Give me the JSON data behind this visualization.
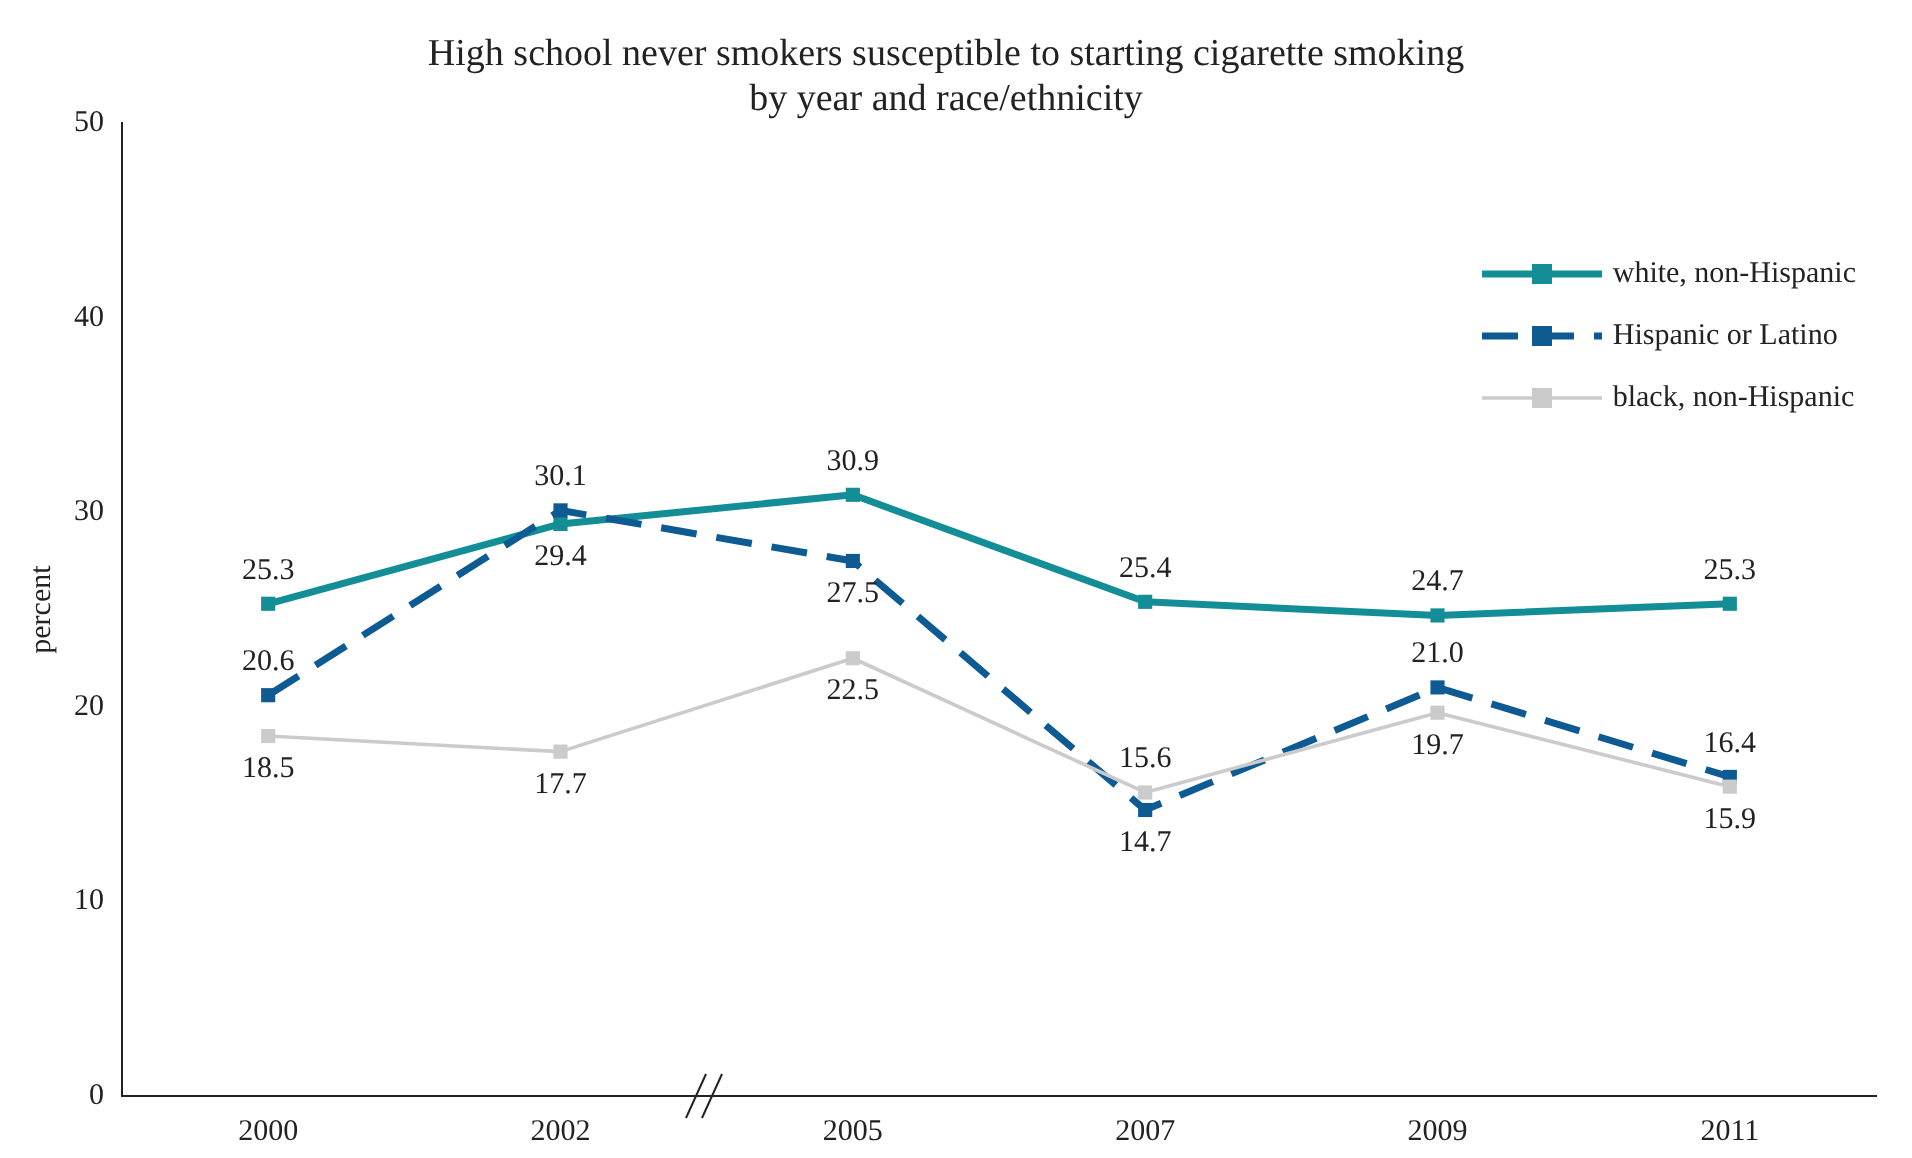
{
  "chart_data": {
    "type": "line",
    "title": "High school never smokers susceptible to starting cigarette smoking\nby year and race/ethnicity",
    "ylabel": "percent",
    "categories": [
      "2000",
      "2002",
      "2005",
      "2007",
      "2009",
      "2011"
    ],
    "ylim": [
      0,
      50
    ],
    "yticks": [
      0,
      10,
      20,
      30,
      40,
      50
    ],
    "grid": false,
    "legend": "top right",
    "marker": "square",
    "series": [
      {
        "name": "white, non-Hispanic",
        "color": "#138e96",
        "line_style": "solid",
        "values": [
          25.3,
          29.4,
          30.9,
          25.4,
          24.7,
          25.3
        ],
        "value_labels": [
          "25.3",
          "29.4",
          "30.9",
          "25.4",
          "24.7",
          "25.3"
        ]
      },
      {
        "name": "Hispanic or Latino",
        "color": "#0e5a92",
        "line_style": "dashed",
        "values": [
          20.6,
          30.1,
          27.5,
          14.7,
          21.0,
          16.4
        ],
        "value_labels": [
          "20.6",
          "30.1",
          "27.5",
          "14.7",
          "21.0",
          "16.4"
        ]
      },
      {
        "name": "black, non-Hispanic",
        "color": "#cbcbcb",
        "line_style": "solid",
        "values": [
          18.5,
          17.7,
          22.5,
          15.6,
          19.7,
          15.9
        ],
        "value_labels": [
          "18.5",
          "17.7",
          "22.5",
          "15.6",
          "19.7",
          "15.9"
        ]
      }
    ]
  }
}
